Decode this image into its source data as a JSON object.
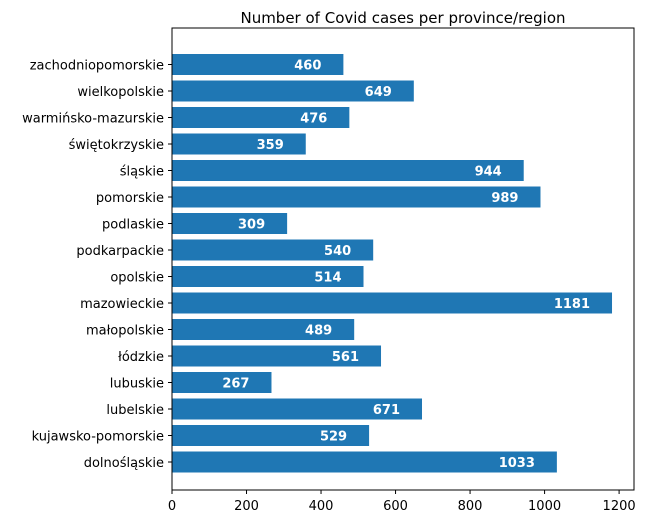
{
  "chart_data": {
    "type": "bar",
    "orientation": "horizontal",
    "title": "Number of Covid cases per province/region",
    "xlabel": "",
    "ylabel": "",
    "categories": [
      "dolnośląskie",
      "kujawsko-pomorskie",
      "lubelskie",
      "lubuskie",
      "łódzkie",
      "małopolskie",
      "mazowieckie",
      "opolskie",
      "podkarpackie",
      "podlaskie",
      "pomorskie",
      "śląskie",
      "świętokrzyskie",
      "warmińsko-mazurskie",
      "wielkopolskie",
      "zachodniopomorskie"
    ],
    "values": [
      1033,
      529,
      671,
      267,
      561,
      489,
      1181,
      514,
      540,
      309,
      989,
      944,
      359,
      476,
      649,
      460
    ],
    "xlim": [
      0,
      1240
    ],
    "xticks": [
      0,
      200,
      400,
      600,
      800,
      1000,
      1200
    ],
    "grid": false,
    "bar_color": "#1f77b4",
    "value_label_color": "#ffffff"
  }
}
